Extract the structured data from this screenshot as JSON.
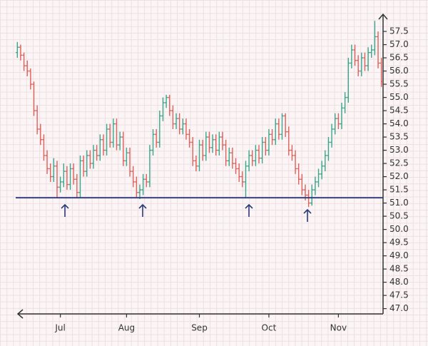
{
  "chart_data": {
    "type": "ohlc",
    "categories": [
      null,
      null,
      null,
      null,
      null,
      null,
      null,
      null,
      null,
      null,
      null,
      null,
      null,
      "Jul",
      null,
      null,
      null,
      null,
      null,
      null,
      null,
      null,
      null,
      null,
      null,
      null,
      null,
      null,
      null,
      null,
      null,
      null,
      null,
      "Aug",
      null,
      null,
      null,
      null,
      null,
      null,
      null,
      null,
      null,
      null,
      null,
      null,
      null,
      null,
      null,
      null,
      null,
      null,
      null,
      null,
      null,
      "Sep",
      null,
      null,
      null,
      null,
      null,
      null,
      null,
      null,
      null,
      null,
      null,
      null,
      null,
      null,
      null,
      null,
      null,
      null,
      null,
      null,
      "Oct",
      null,
      null,
      null,
      null,
      null,
      null,
      null,
      null,
      null,
      null,
      null,
      null,
      null,
      null,
      null,
      null,
      null,
      null,
      null,
      null,
      "Nov",
      null,
      null,
      null,
      null,
      null,
      null,
      null,
      null,
      null,
      null,
      null,
      null,
      null
    ],
    "open": [
      56.7,
      56.9,
      56.6,
      56.2,
      56.0,
      55.5,
      54.5,
      53.8,
      53.4,
      52.8,
      52.3,
      52.0,
      52.4,
      51.6,
      51.8,
      52.2,
      51.7,
      52.3,
      51.9,
      51.4,
      52.6,
      52.2,
      52.8,
      52.5,
      53.0,
      52.8,
      53.4,
      53.0,
      53.8,
      53.3,
      54.0,
      53.2,
      53.5,
      52.6,
      52.9,
      52.2,
      51.8,
      51.4,
      51.5,
      51.9,
      51.8,
      53.0,
      53.6,
      53.3,
      54.3,
      54.8,
      55.0,
      54.5,
      54.0,
      54.2,
      53.8,
      54.0,
      53.6,
      53.3,
      52.6,
      52.4,
      53.2,
      52.8,
      53.5,
      53.1,
      53.4,
      53.0,
      53.5,
      53.2,
      52.6,
      52.9,
      52.5,
      52.3,
      52.0,
      51.8,
      52.4,
      52.8,
      52.6,
      53.0,
      52.7,
      53.3,
      53.0,
      53.6,
      53.4,
      54.0,
      53.6,
      54.3,
      53.7,
      53.0,
      52.8,
      52.3,
      51.9,
      51.5,
      51.3,
      51.0,
      51.5,
      51.8,
      52.1,
      52.4,
      52.8,
      53.3,
      53.8,
      54.2,
      54.0,
      54.6,
      55.0,
      56.3,
      56.8,
      56.4,
      56.0,
      56.5,
      56.2,
      56.7,
      56.8,
      57.3,
      56.3
    ],
    "high": [
      57.1,
      57.0,
      56.7,
      56.4,
      56.1,
      55.6,
      54.7,
      54.0,
      53.6,
      53.0,
      52.5,
      52.7,
      52.6,
      52.0,
      52.5,
      52.4,
      52.5,
      52.5,
      52.1,
      52.8,
      52.8,
      53.0,
      53.0,
      53.2,
      53.2,
      53.6,
      53.6,
      54.0,
      54.0,
      54.2,
      54.2,
      53.7,
      53.7,
      53.1,
      53.1,
      52.4,
      52.0,
      51.7,
      52.1,
      52.1,
      53.2,
      53.8,
      53.8,
      54.5,
      55.0,
      55.1,
      55.1,
      54.7,
      54.4,
      54.4,
      54.2,
      54.2,
      53.8,
      53.5,
      52.8,
      53.4,
      53.4,
      53.7,
      53.7,
      53.6,
      53.6,
      53.7,
      53.7,
      53.4,
      53.1,
      53.1,
      52.7,
      52.5,
      52.2,
      52.6,
      53.0,
      53.0,
      53.2,
      53.2,
      53.5,
      53.5,
      53.8,
      53.8,
      54.2,
      54.2,
      54.4,
      54.4,
      53.9,
      53.2,
      53.0,
      52.5,
      52.1,
      51.7,
      51.5,
      51.7,
      52.0,
      52.3,
      52.6,
      53.0,
      53.5,
      54.0,
      54.4,
      54.4,
      54.8,
      55.2,
      56.5,
      57.0,
      57.0,
      56.6,
      56.7,
      56.7,
      56.9,
      57.0,
      57.9,
      57.5,
      56.5
    ],
    "low": [
      56.5,
      56.4,
      56.0,
      55.8,
      55.3,
      54.3,
      53.6,
      53.2,
      52.6,
      52.1,
      51.8,
      51.8,
      51.2,
      51.4,
      51.6,
      51.5,
      51.5,
      51.7,
      51.2,
      51.2,
      52.0,
      52.0,
      52.3,
      52.3,
      52.6,
      52.6,
      52.8,
      52.8,
      53.1,
      53.1,
      53.0,
      53.0,
      52.4,
      52.4,
      52.0,
      51.6,
      51.2,
      51.15,
      51.3,
      51.6,
      51.6,
      52.8,
      53.1,
      53.1,
      54.1,
      54.6,
      54.3,
      53.8,
      53.8,
      53.6,
      53.6,
      53.4,
      53.1,
      52.4,
      52.2,
      52.2,
      52.6,
      52.6,
      52.9,
      52.9,
      52.8,
      52.8,
      53.0,
      52.4,
      52.4,
      52.3,
      52.1,
      51.8,
      51.6,
      51.2,
      52.2,
      52.4,
      52.4,
      52.5,
      52.5,
      52.8,
      52.8,
      53.2,
      53.2,
      53.4,
      53.4,
      53.5,
      52.8,
      52.6,
      52.1,
      51.7,
      51.3,
      51.1,
      50.85,
      50.9,
      51.3,
      51.6,
      51.9,
      52.2,
      52.6,
      53.1,
      53.6,
      53.8,
      53.8,
      54.4,
      54.8,
      56.1,
      56.2,
      55.8,
      55.8,
      56.0,
      56.0,
      56.5,
      56.6,
      56.1,
      55.4
    ],
    "close": [
      56.9,
      56.6,
      56.2,
      56.0,
      55.5,
      54.5,
      53.8,
      53.4,
      52.8,
      52.3,
      52.0,
      52.4,
      51.6,
      51.8,
      52.2,
      51.7,
      52.3,
      51.9,
      51.4,
      52.6,
      52.2,
      52.8,
      52.5,
      53.0,
      52.8,
      53.4,
      53.0,
      53.8,
      53.3,
      54.0,
      53.2,
      53.5,
      52.6,
      52.9,
      52.2,
      51.8,
      51.4,
      51.5,
      51.9,
      51.8,
      53.0,
      53.6,
      53.3,
      54.3,
      54.8,
      55.0,
      54.5,
      54.0,
      54.2,
      53.8,
      54.0,
      53.6,
      53.3,
      52.6,
      52.4,
      53.2,
      52.8,
      53.5,
      53.1,
      53.4,
      53.0,
      53.5,
      53.2,
      52.6,
      52.9,
      52.5,
      52.3,
      52.0,
      51.8,
      52.4,
      52.8,
      52.6,
      53.0,
      52.7,
      53.3,
      53.0,
      53.6,
      53.4,
      54.0,
      53.6,
      54.3,
      53.7,
      53.0,
      52.8,
      52.3,
      51.9,
      51.5,
      51.3,
      51.0,
      51.5,
      51.8,
      52.1,
      52.4,
      52.8,
      53.3,
      53.8,
      54.2,
      54.0,
      54.6,
      55.0,
      56.3,
      56.8,
      56.4,
      56.0,
      56.5,
      56.2,
      56.7,
      56.8,
      57.3,
      56.3,
      55.6
    ],
    "up_color": "#3aa68a",
    "down_color": "#e0605a",
    "support_level": 51.2,
    "support_color": "#2d3a7a",
    "ylim": [
      46.8,
      58.15
    ],
    "yticks": [
      {
        "value": 47,
        "label": "47.0"
      },
      47.5,
      {
        "value": 48,
        "label": "48.0"
      },
      48.5,
      {
        "value": 49,
        "label": "49.0"
      },
      49.5,
      {
        "value": 50,
        "label": "50.0"
      },
      50.5,
      {
        "value": 51,
        "label": "51.0"
      },
      51.5,
      {
        "value": 52,
        "label": "52.0"
      },
      52.5,
      {
        "value": 53,
        "label": "53.0"
      },
      53.5,
      {
        "value": 54,
        "label": "54.0"
      },
      54.5,
      {
        "value": 55,
        "label": "55.0"
      },
      55.5,
      {
        "value": 56,
        "label": "56.0"
      },
      56.5,
      {
        "value": 57,
        "label": "57.0"
      },
      57.5
    ]
  }
}
